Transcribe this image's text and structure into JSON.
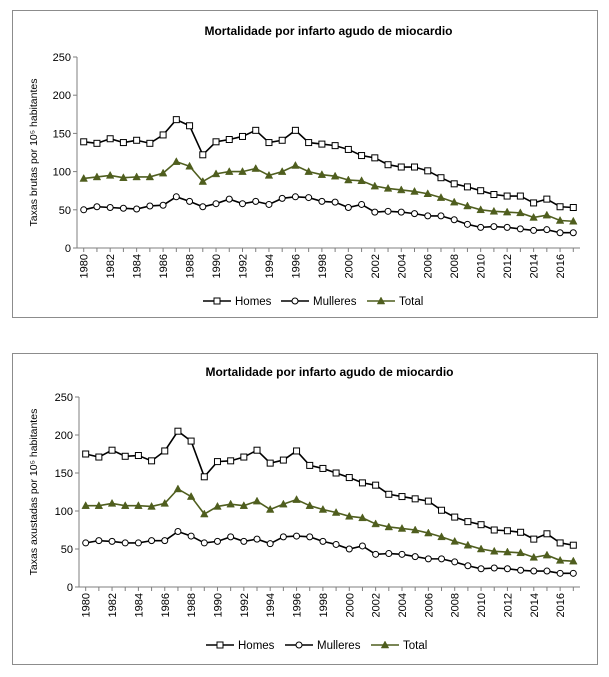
{
  "chart_data": [
    {
      "type": "line",
      "title": "Mortalidade por infarto agudo de miocardio",
      "ylabel": "Taxas brutas por 10⁵ habitantes",
      "xlabel": "",
      "ylim": [
        0,
        250
      ],
      "yticks": [
        "0",
        "50",
        "100",
        "150",
        "200",
        "250"
      ],
      "xtick_labels": [
        "1980",
        "1982",
        "1984",
        "1986",
        "1988",
        "1990",
        "1992",
        "1994",
        "1996",
        "1998",
        "2000",
        "2002",
        "2004",
        "2006",
        "2008",
        "2010",
        "2012",
        "2014",
        "2016"
      ],
      "legend": "bottom",
      "x": [
        1980,
        1981,
        1982,
        1983,
        1984,
        1985,
        1986,
        1987,
        1988,
        1989,
        1990,
        1991,
        1992,
        1993,
        1994,
        1995,
        1996,
        1997,
        1998,
        1999,
        2000,
        2001,
        2002,
        2003,
        2004,
        2005,
        2006,
        2007,
        2008,
        2009,
        2010,
        2011,
        2012,
        2013,
        2014,
        2015,
        2016,
        2017
      ],
      "series": [
        {
          "name": "Homes",
          "marker": "square",
          "color": "#000000",
          "values": [
            139,
            137,
            143,
            138,
            141,
            137,
            148,
            168,
            160,
            122,
            139,
            142,
            146,
            154,
            138,
            141,
            154,
            138,
            136,
            134,
            129,
            121,
            118,
            109,
            106,
            106,
            101,
            92,
            84,
            80,
            75,
            70,
            68,
            68,
            59,
            64,
            54,
            53
          ]
        },
        {
          "name": "Mulleres",
          "marker": "circle",
          "color": "#000000",
          "values": [
            50,
            54,
            53,
            52,
            51,
            55,
            56,
            67,
            61,
            54,
            58,
            64,
            58,
            61,
            57,
            65,
            67,
            66,
            61,
            60,
            53,
            57,
            47,
            48,
            47,
            45,
            42,
            42,
            37,
            31,
            27,
            28,
            27,
            25,
            23,
            24,
            20,
            20
          ]
        },
        {
          "name": "Total",
          "marker": "triangle",
          "color": "#4f5e1e",
          "values": [
            91,
            93,
            95,
            92,
            93,
            93,
            98,
            113,
            107,
            87,
            97,
            100,
            100,
            104,
            95,
            100,
            108,
            100,
            96,
            94,
            89,
            88,
            81,
            78,
            76,
            74,
            71,
            66,
            60,
            55,
            50,
            48,
            47,
            46,
            40,
            43,
            36,
            35
          ]
        }
      ]
    },
    {
      "type": "line",
      "title": "Mortalidade por infarto agudo de miocardio",
      "ylabel": "Taxas axustadas por 10⁵ habitantes",
      "xlabel": "",
      "ylim": [
        0,
        250
      ],
      "yticks": [
        "0",
        "50",
        "100",
        "150",
        "200",
        "250"
      ],
      "xtick_labels": [
        "1980",
        "1982",
        "1984",
        "1986",
        "1988",
        "1990",
        "1992",
        "1994",
        "1996",
        "1998",
        "2000",
        "2002",
        "2004",
        "2006",
        "2008",
        "2010",
        "2012",
        "2014",
        "2016"
      ],
      "legend": "bottom",
      "x": [
        1980,
        1981,
        1982,
        1983,
        1984,
        1985,
        1986,
        1987,
        1988,
        1989,
        1990,
        1991,
        1992,
        1993,
        1994,
        1995,
        1996,
        1997,
        1998,
        1999,
        2000,
        2001,
        2002,
        2003,
        2004,
        2005,
        2006,
        2007,
        2008,
        2009,
        2010,
        2011,
        2012,
        2013,
        2014,
        2015,
        2016,
        2017
      ],
      "series": [
        {
          "name": "Homes",
          "marker": "square",
          "color": "#000000",
          "values": [
            175,
            171,
            180,
            172,
            173,
            166,
            179,
            205,
            192,
            145,
            165,
            166,
            171,
            180,
            163,
            167,
            179,
            160,
            156,
            150,
            144,
            137,
            134,
            122,
            119,
            116,
            113,
            101,
            92,
            86,
            82,
            75,
            74,
            72,
            63,
            70,
            58,
            55
          ]
        },
        {
          "name": "Mulleres",
          "marker": "circle",
          "color": "#000000",
          "values": [
            58,
            61,
            60,
            58,
            58,
            61,
            61,
            73,
            67,
            58,
            60,
            66,
            60,
            63,
            57,
            66,
            67,
            66,
            60,
            56,
            50,
            54,
            43,
            44,
            43,
            40,
            37,
            37,
            33,
            28,
            24,
            25,
            24,
            22,
            21,
            21,
            18,
            18
          ]
        },
        {
          "name": "Total",
          "marker": "triangle",
          "color": "#4f5e1e",
          "values": [
            107,
            107,
            110,
            107,
            107,
            106,
            110,
            129,
            119,
            96,
            106,
            109,
            107,
            113,
            102,
            109,
            115,
            107,
            102,
            98,
            93,
            91,
            83,
            79,
            77,
            75,
            71,
            66,
            60,
            55,
            50,
            47,
            46,
            45,
            39,
            42,
            35,
            34
          ]
        }
      ]
    }
  ]
}
